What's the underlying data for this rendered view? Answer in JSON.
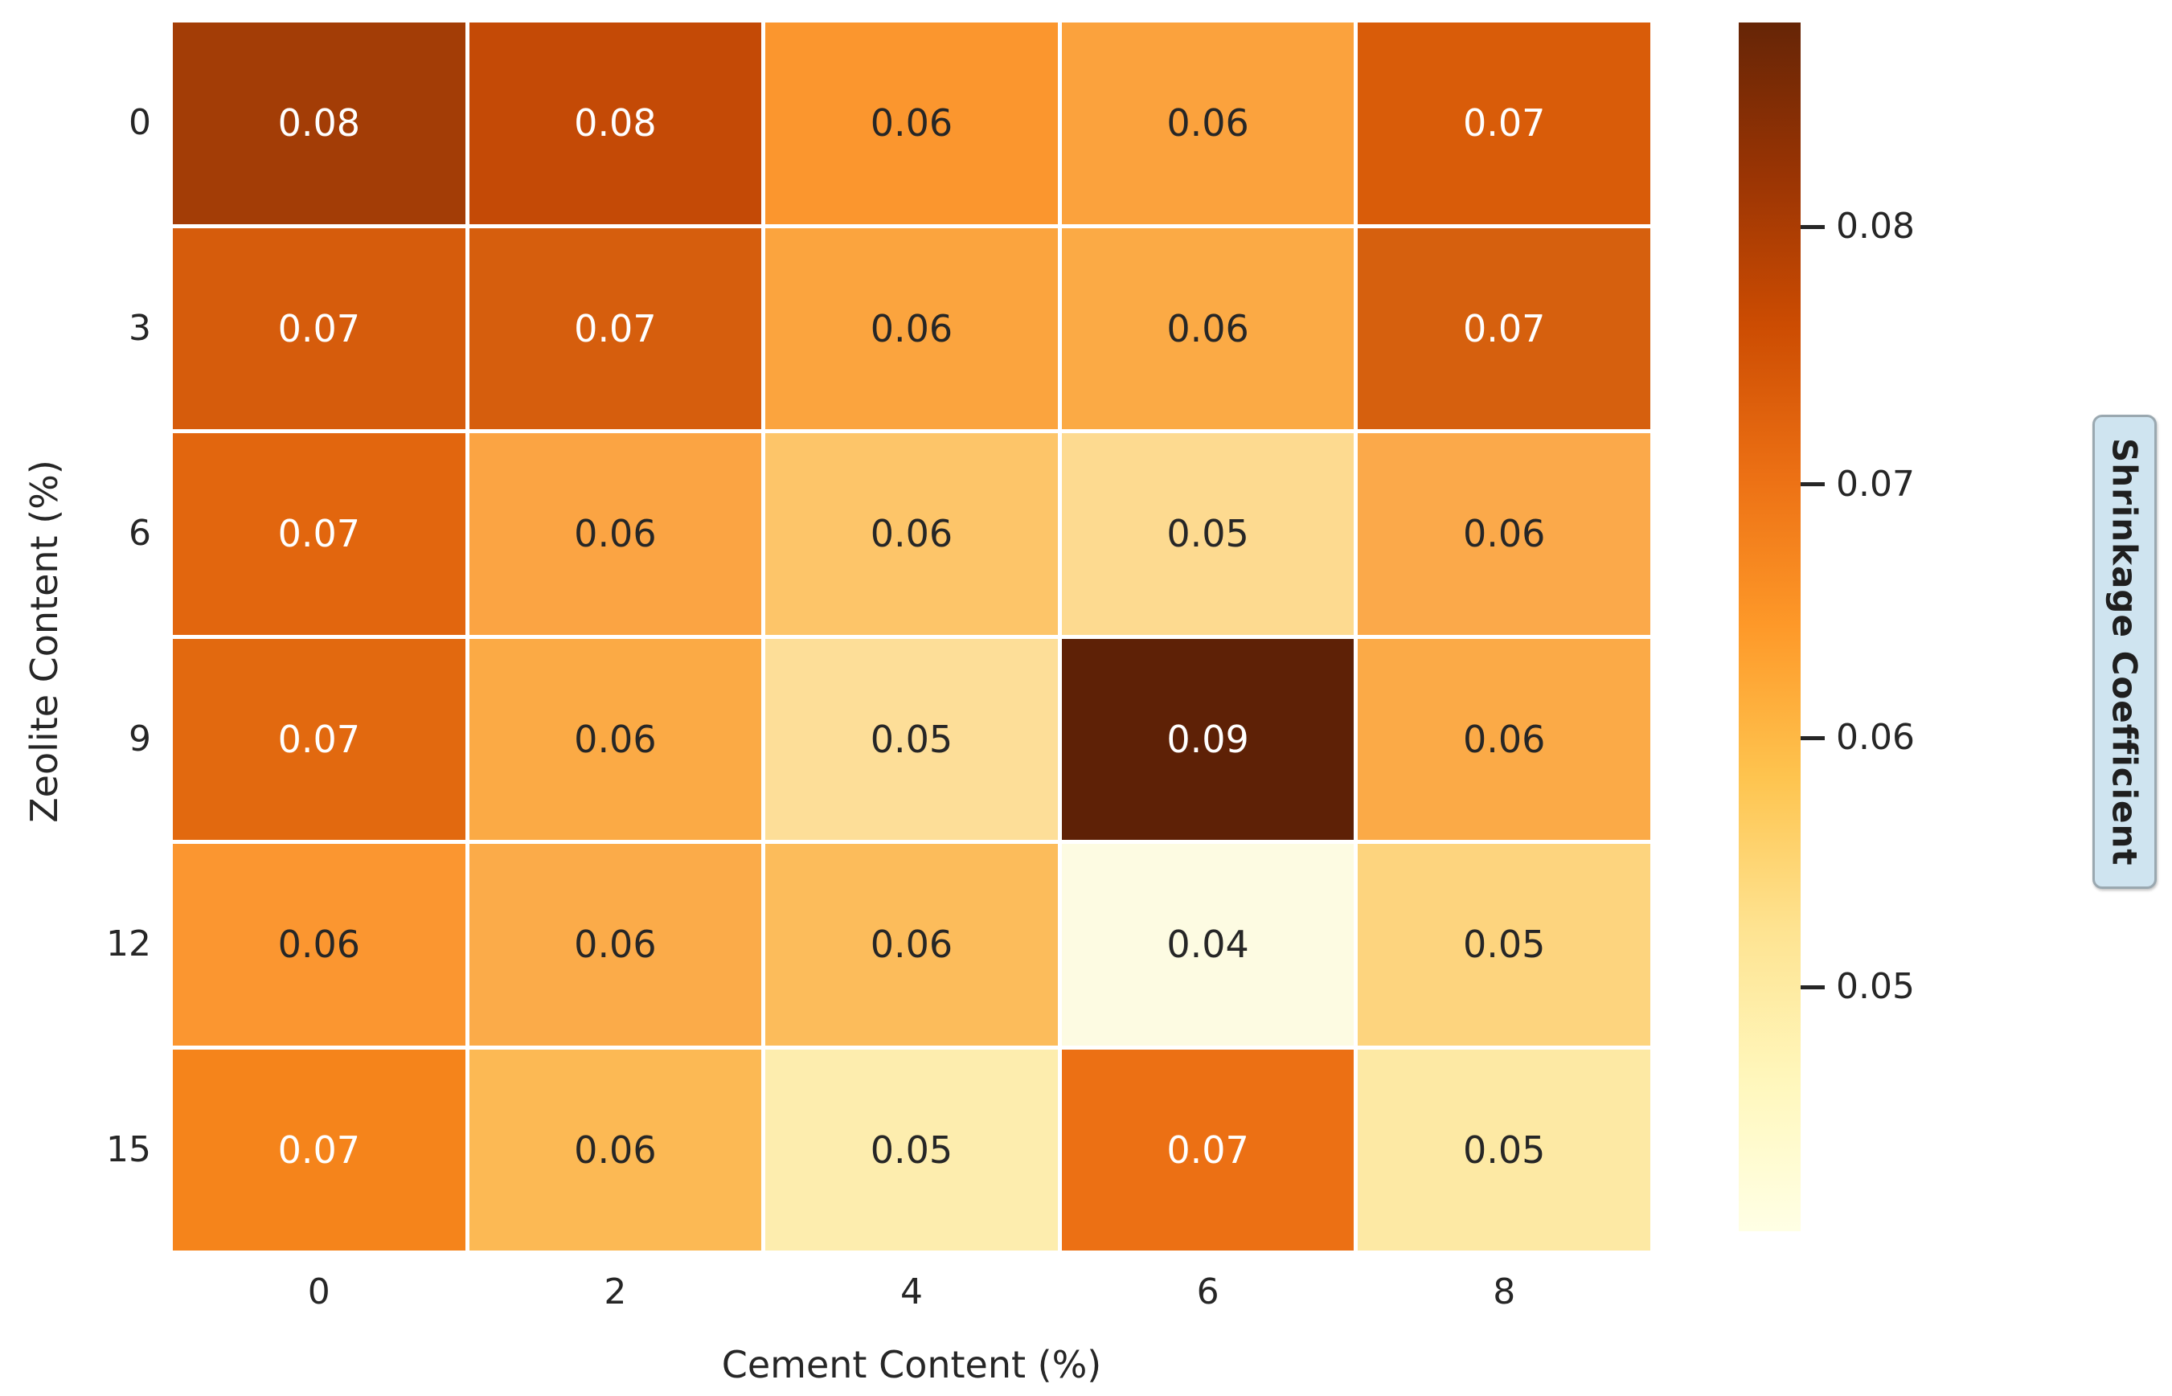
{
  "chart_data": {
    "type": "heatmap",
    "xlabel": "Cement Content (%)",
    "ylabel": "Zeolite Content (%)",
    "x_ticks": [
      "0",
      "2",
      "4",
      "6",
      "8"
    ],
    "y_ticks": [
      "0",
      "3",
      "6",
      "9",
      "12",
      "15"
    ],
    "grid_line_color": "#ffffff",
    "annotation_dark_text": "#262626",
    "annotation_light_text": "#ffffff",
    "cells": [
      [
        {
          "v": "0.08",
          "bg": "#a33d06",
          "fg": "#ffffff"
        },
        {
          "v": "0.08",
          "bg": "#c44a06",
          "fg": "#ffffff"
        },
        {
          "v": "0.06",
          "bg": "#fb962e",
          "fg": "#262626"
        },
        {
          "v": "0.06",
          "bg": "#fba23d",
          "fg": "#262626"
        },
        {
          "v": "0.07",
          "bg": "#d95c09",
          "fg": "#ffffff"
        }
      ],
      [
        {
          "v": "0.07",
          "bg": "#d65c0c",
          "fg": "#ffffff"
        },
        {
          "v": "0.07",
          "bg": "#d65e0d",
          "fg": "#ffffff"
        },
        {
          "v": "0.06",
          "bg": "#fba43e",
          "fg": "#262626"
        },
        {
          "v": "0.06",
          "bg": "#fbaa45",
          "fg": "#262626"
        },
        {
          "v": "0.07",
          "bg": "#d6600e",
          "fg": "#ffffff"
        }
      ],
      [
        {
          "v": "0.07",
          "bg": "#e2660e",
          "fg": "#ffffff"
        },
        {
          "v": "0.06",
          "bg": "#fba443",
          "fg": "#262626"
        },
        {
          "v": "0.06",
          "bg": "#fdc569",
          "fg": "#262626"
        },
        {
          "v": "0.05",
          "bg": "#fdda90",
          "fg": "#262626"
        },
        {
          "v": "0.06",
          "bg": "#fba94a",
          "fg": "#262626"
        }
      ],
      [
        {
          "v": "0.07",
          "bg": "#e2690f",
          "fg": "#ffffff"
        },
        {
          "v": "0.06",
          "bg": "#fbaa45",
          "fg": "#262626"
        },
        {
          "v": "0.05",
          "bg": "#fdde98",
          "fg": "#262626"
        },
        {
          "v": "0.09",
          "bg": "#5e2106",
          "fg": "#ffffff"
        },
        {
          "v": "0.06",
          "bg": "#fbaa47",
          "fg": "#262626"
        }
      ],
      [
        {
          "v": "0.06",
          "bg": "#fb9630",
          "fg": "#262626"
        },
        {
          "v": "0.06",
          "bg": "#fbab49",
          "fg": "#262626"
        },
        {
          "v": "0.06",
          "bg": "#fcbc5b",
          "fg": "#262626"
        },
        {
          "v": "0.04",
          "bg": "#fdfbe2",
          "fg": "#262626"
        },
        {
          "v": "0.05",
          "bg": "#fdd47e",
          "fg": "#262626"
        }
      ],
      [
        {
          "v": "0.07",
          "bg": "#f5841b",
          "fg": "#ffffff"
        },
        {
          "v": "0.06",
          "bg": "#fcb954",
          "fg": "#262626"
        },
        {
          "v": "0.05",
          "bg": "#fdedae",
          "fg": "#262626"
        },
        {
          "v": "0.07",
          "bg": "#ec7014",
          "fg": "#ffffff"
        },
        {
          "v": "0.05",
          "bg": "#fde9a4",
          "fg": "#262626"
        }
      ]
    ],
    "colorbar": {
      "label": "Shrinkage Coefficient",
      "tick_labels": [
        "0.08",
        "0.07",
        "0.06",
        "0.05"
      ],
      "tick_positions_pct": [
        16.9,
        38.2,
        59.2,
        79.8
      ],
      "gradient_stops_top_to_bottom": [
        "#662506",
        "#993404",
        "#cc4c02",
        "#ec7014",
        "#fe9929",
        "#fec44f",
        "#fee391",
        "#fff7bc",
        "#ffffe5"
      ],
      "vmin": 0.04,
      "vmax": 0.09,
      "label_box_bg": "#cfe4f0",
      "label_box_border": "#9aa8b0",
      "label_text_color": "#1f1f1f"
    }
  }
}
